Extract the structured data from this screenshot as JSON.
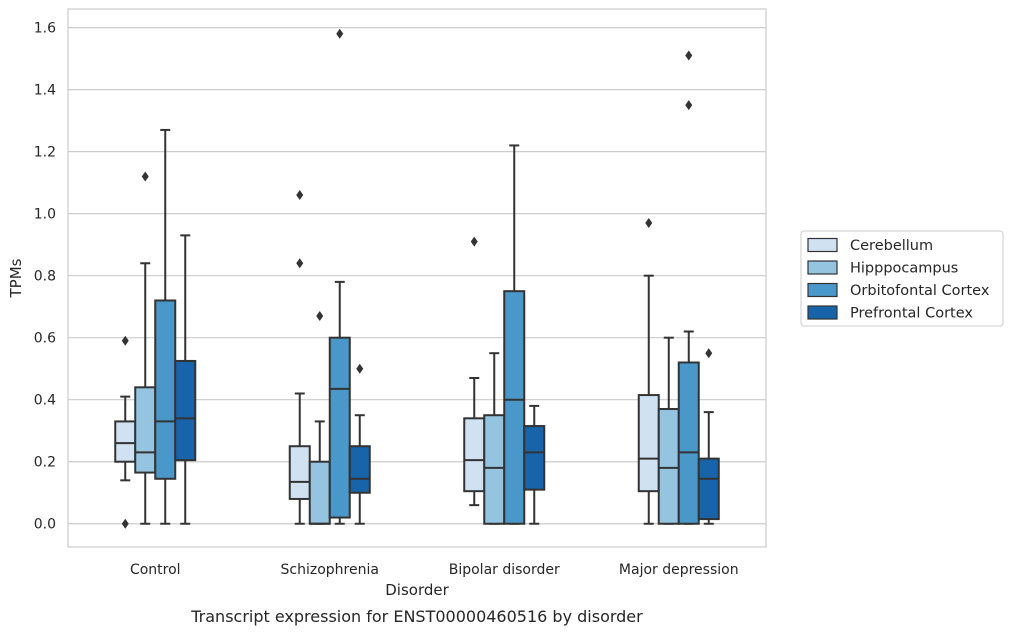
{
  "chart_data": {
    "type": "box",
    "title": "",
    "caption": "Transcript expression for ENST00000460516 by disorder",
    "xlabel": "Disorder",
    "ylabel": "TPMs",
    "ylim": [
      -0.075,
      1.66
    ],
    "yticks": [
      "0.0",
      "0.2",
      "0.4",
      "0.6",
      "0.8",
      "1.0",
      "1.2",
      "1.4",
      "1.6"
    ],
    "grid": true,
    "legend_position": "right",
    "categories": [
      "Control",
      "Schizophrenia",
      "Bipolar disorder",
      "Major depression"
    ],
    "series": [
      {
        "name": "Cerebellum",
        "color": "#d0e1f2",
        "boxes": [
          {
            "whislo": 0.14,
            "q1": 0.2,
            "med": 0.26,
            "q3": 0.33,
            "whishi": 0.41,
            "fliers": [
              0.59,
              0.0
            ]
          },
          {
            "whislo": 0.0,
            "q1": 0.08,
            "med": 0.135,
            "q3": 0.25,
            "whishi": 0.42,
            "fliers": [
              1.06,
              0.84
            ]
          },
          {
            "whislo": 0.06,
            "q1": 0.105,
            "med": 0.205,
            "q3": 0.34,
            "whishi": 0.47,
            "fliers": [
              0.91
            ]
          },
          {
            "whislo": 0.0,
            "q1": 0.105,
            "med": 0.21,
            "q3": 0.415,
            "whishi": 0.8,
            "fliers": [
              0.97
            ]
          }
        ]
      },
      {
        "name": "Hipppocampus",
        "color": "#94c4df",
        "boxes": [
          {
            "whislo": 0.0,
            "q1": 0.165,
            "med": 0.23,
            "q3": 0.44,
            "whishi": 0.84,
            "fliers": [
              1.12
            ]
          },
          {
            "whislo": 0.0,
            "q1": 0.0,
            "med": 0.0,
            "q3": 0.2,
            "whishi": 0.33,
            "fliers": [
              0.67
            ]
          },
          {
            "whislo": 0.0,
            "q1": 0.0,
            "med": 0.18,
            "q3": 0.35,
            "whishi": 0.55,
            "fliers": []
          },
          {
            "whislo": 0.0,
            "q1": 0.0,
            "med": 0.18,
            "q3": 0.37,
            "whishi": 0.6,
            "fliers": []
          }
        ]
      },
      {
        "name": "Orbitofontal Cortex",
        "color": "#4a98c9",
        "boxes": [
          {
            "whislo": 0.0,
            "q1": 0.145,
            "med": 0.33,
            "q3": 0.72,
            "whishi": 1.27,
            "fliers": []
          },
          {
            "whislo": 0.0,
            "q1": 0.02,
            "med": 0.435,
            "q3": 0.6,
            "whishi": 0.78,
            "fliers": [
              1.58
            ]
          },
          {
            "whislo": 0.0,
            "q1": 0.0,
            "med": 0.4,
            "q3": 0.75,
            "whishi": 1.22,
            "fliers": []
          },
          {
            "whislo": 0.0,
            "q1": 0.0,
            "med": 0.23,
            "q3": 0.52,
            "whishi": 0.62,
            "fliers": [
              1.51,
              1.35
            ]
          }
        ]
      },
      {
        "name": "Prefrontal Cortex",
        "color": "#1764ab",
        "boxes": [
          {
            "whislo": 0.0,
            "q1": 0.205,
            "med": 0.34,
            "q3": 0.525,
            "whishi": 0.93,
            "fliers": []
          },
          {
            "whislo": 0.0,
            "q1": 0.1,
            "med": 0.145,
            "q3": 0.25,
            "whishi": 0.35,
            "fliers": [
              0.5
            ]
          },
          {
            "whislo": 0.0,
            "q1": 0.11,
            "med": 0.23,
            "q3": 0.315,
            "whishi": 0.38,
            "fliers": []
          },
          {
            "whislo": 0.0,
            "q1": 0.015,
            "med": 0.145,
            "q3": 0.21,
            "whishi": 0.36,
            "fliers": [
              0.55
            ]
          }
        ]
      }
    ]
  }
}
